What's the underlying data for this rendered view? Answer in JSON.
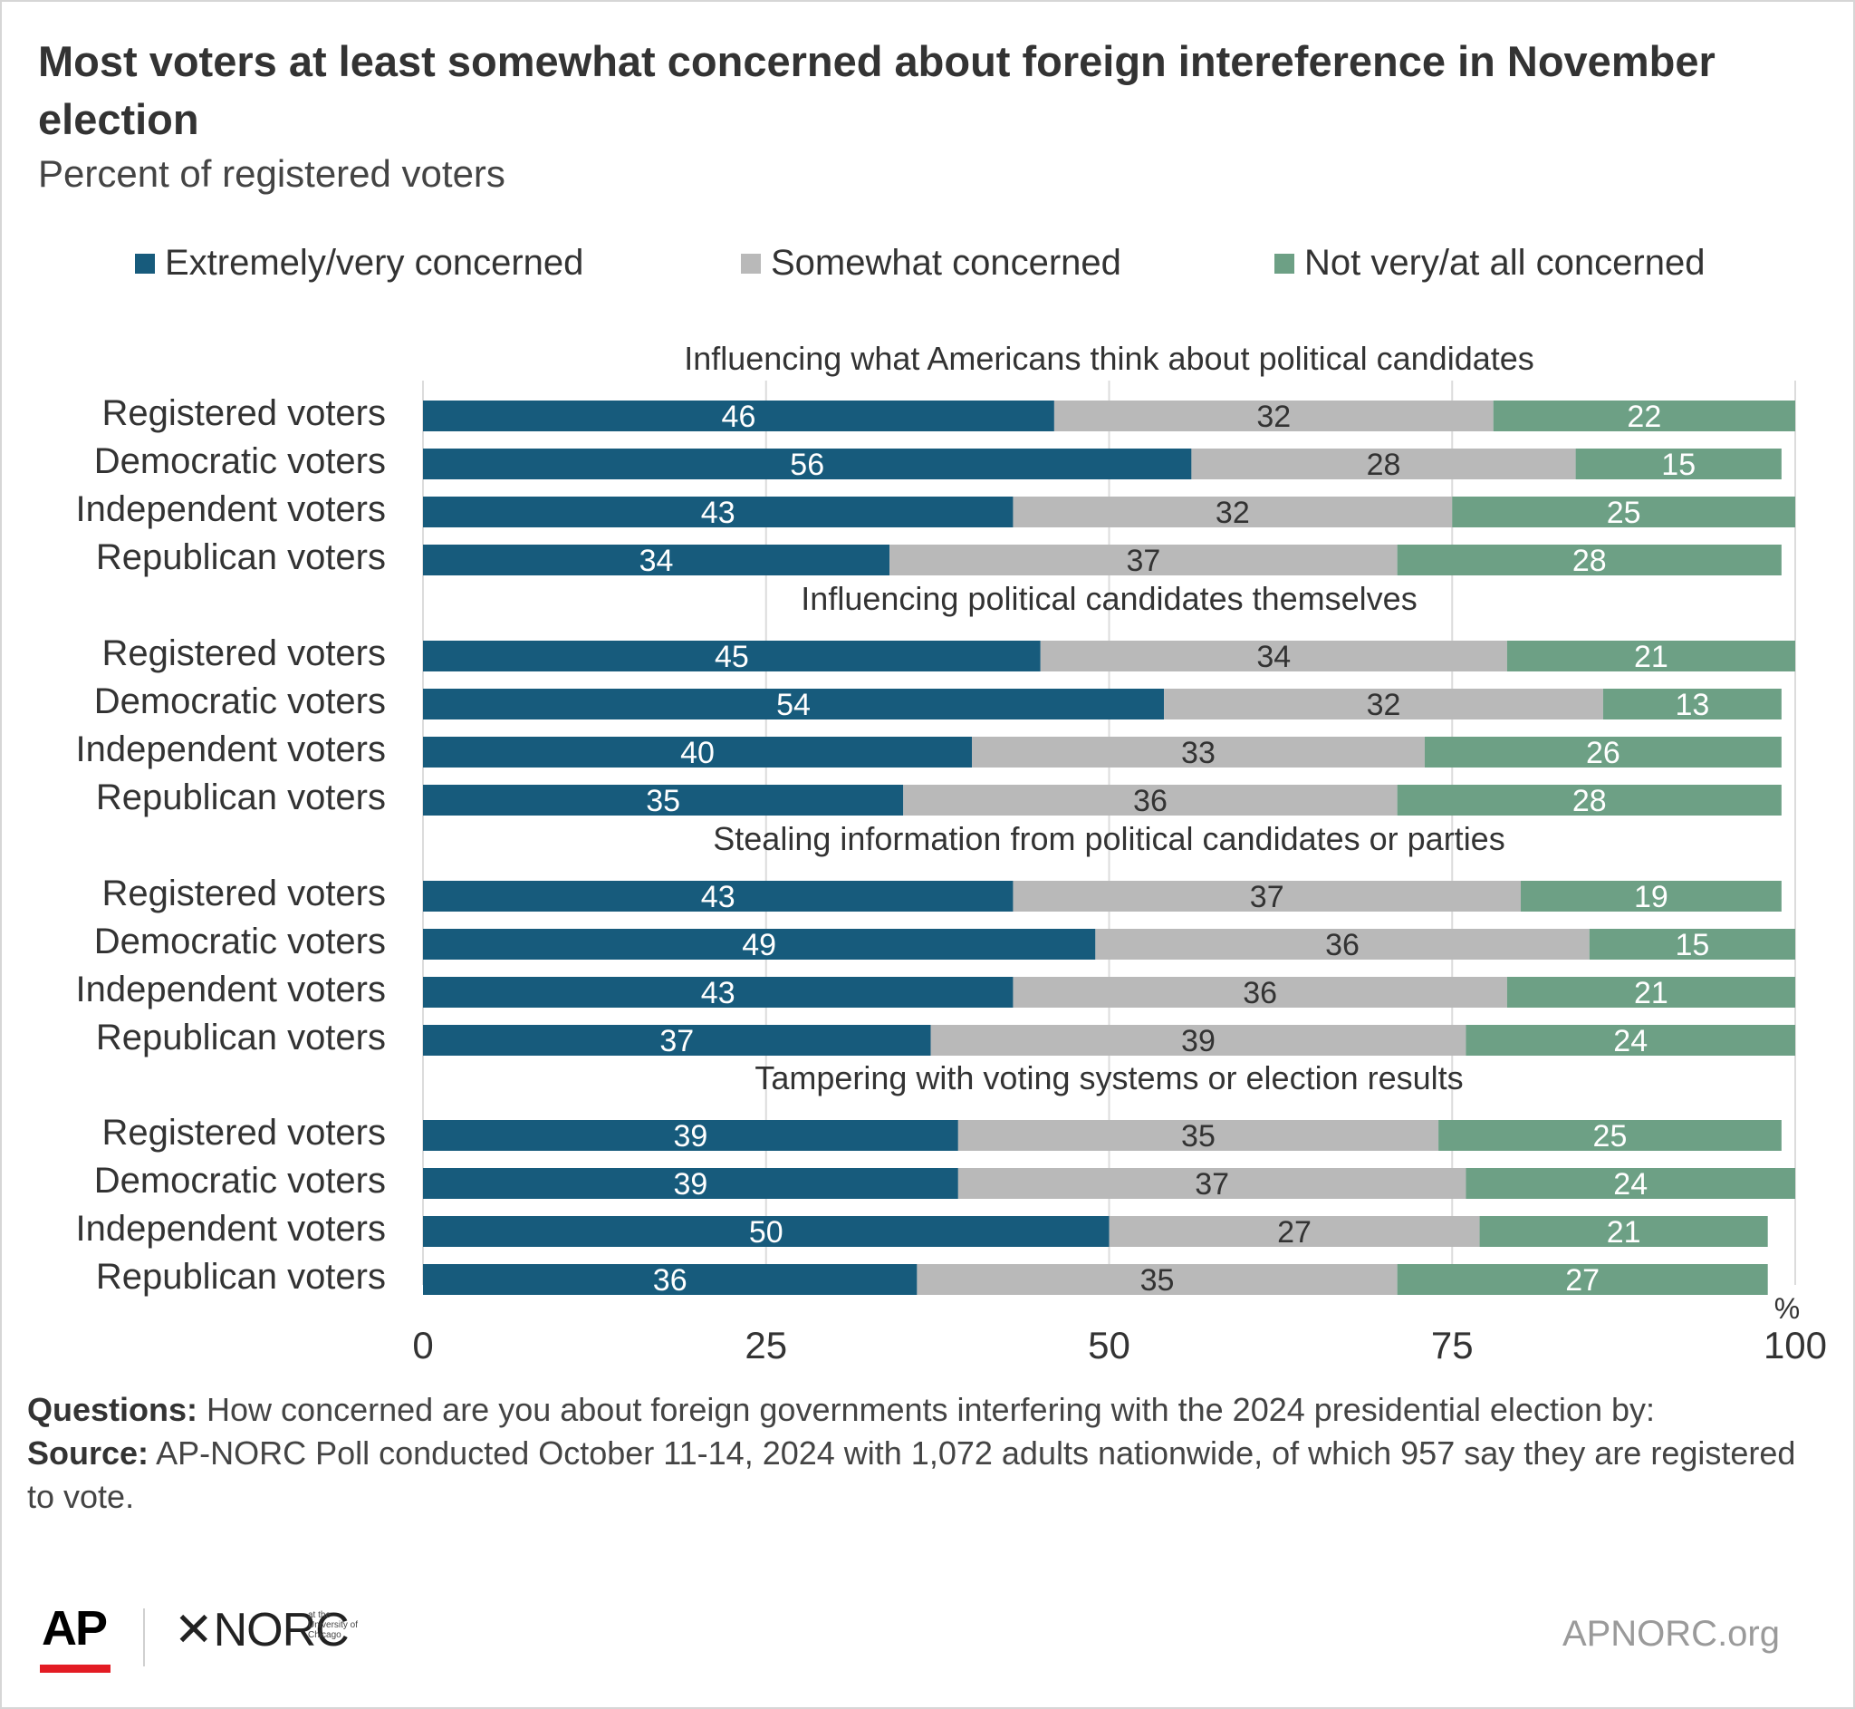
{
  "title": "Most voters at least somewhat concerned about foreign intereference in November election",
  "subtitle": "Percent of registered voters",
  "colors": {
    "extremely": "#175b7c",
    "somewhat": "#b9b9b9",
    "not": "#6da085",
    "label_dark": "#333333",
    "label_light": "#ffffff"
  },
  "chart_data": {
    "type": "bar",
    "orientation": "horizontal",
    "stacked": true,
    "legend_position": "top",
    "xlim": [
      0,
      100
    ],
    "x_ticks": [
      "0",
      "25",
      "50",
      "75",
      "100"
    ],
    "x_unit": "%",
    "grid": true,
    "series": [
      {
        "key": "extremely",
        "name": "Extremely/very concerned"
      },
      {
        "key": "somewhat",
        "name": "Somewhat concerned"
      },
      {
        "key": "not",
        "name": "Not very/at all concerned"
      }
    ],
    "groups": [
      {
        "title": "Influencing what Americans think about political candidates",
        "rows": [
          {
            "label": "Registered voters",
            "values": [
              46,
              32,
              22
            ]
          },
          {
            "label": "Democratic voters",
            "values": [
              56,
              28,
              15
            ]
          },
          {
            "label": "Independent voters",
            "values": [
              43,
              32,
              25
            ]
          },
          {
            "label": "Republican voters",
            "values": [
              34,
              37,
              28
            ]
          }
        ]
      },
      {
        "title": "Influencing political candidates themselves",
        "rows": [
          {
            "label": "Registered voters",
            "values": [
              45,
              34,
              21
            ]
          },
          {
            "label": "Democratic voters",
            "values": [
              54,
              32,
              13
            ]
          },
          {
            "label": "Independent voters",
            "values": [
              40,
              33,
              26
            ]
          },
          {
            "label": "Republican voters",
            "values": [
              35,
              36,
              28
            ]
          }
        ]
      },
      {
        "title": "Stealing information from political candidates or parties",
        "rows": [
          {
            "label": "Registered voters",
            "values": [
              43,
              37,
              19
            ]
          },
          {
            "label": "Democratic voters",
            "values": [
              49,
              36,
              15
            ]
          },
          {
            "label": "Independent voters",
            "values": [
              43,
              36,
              21
            ]
          },
          {
            "label": "Republican voters",
            "values": [
              37,
              39,
              24
            ]
          }
        ]
      },
      {
        "title": "Tampering with voting systems or election results",
        "rows": [
          {
            "label": "Registered voters",
            "values": [
              39,
              35,
              25
            ]
          },
          {
            "label": "Democratic voters",
            "values": [
              39,
              37,
              24
            ]
          },
          {
            "label": "Independent voters",
            "values": [
              50,
              27,
              21
            ]
          },
          {
            "label": "Republican voters",
            "values": [
              36,
              35,
              27
            ]
          }
        ]
      }
    ]
  },
  "notes": {
    "questions_label": "Questions:",
    "questions_text": "How concerned are you about foreign governments interfering with the 2024 presidential election by:",
    "source_label": "Source:",
    "source_text": "AP-NORC Poll conducted October 11-14, 2024 with 1,072 adults nationwide, of which 957 say they are registered to vote."
  },
  "footer": {
    "ap_logo": "AP",
    "norc_logo": "NORC",
    "norc_tagline": "at the University of Chicago",
    "site": "APNORC.org"
  }
}
